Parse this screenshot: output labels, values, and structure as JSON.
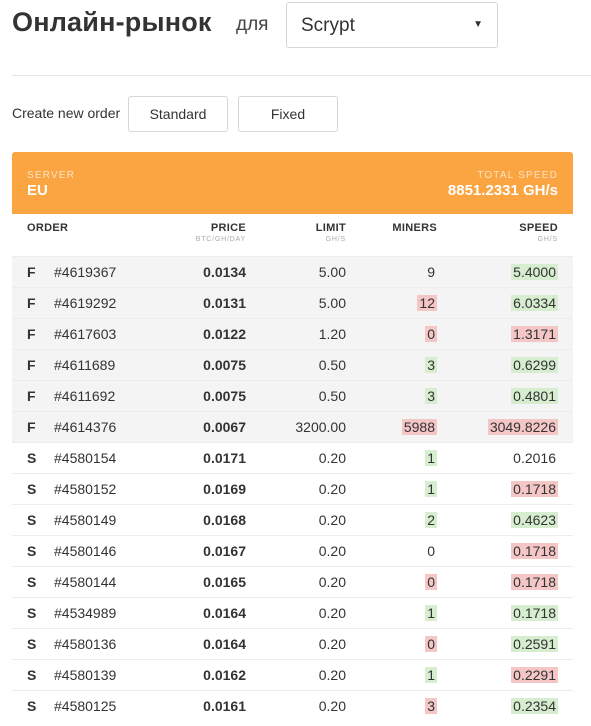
{
  "header": {
    "title": "Онлайн-рынок",
    "for_label": "для",
    "algorithm_selected": "Scrypt"
  },
  "order_bar": {
    "label": "Create new order",
    "standard_label": "Standard",
    "fixed_label": "Fixed"
  },
  "server_panel": {
    "server_label": "SERVER",
    "server_value": "EU",
    "speed_label": "TOTAL SPEED",
    "speed_value": "8851.2331 GH/s"
  },
  "table": {
    "headers": {
      "order": "ORDER",
      "price": "PRICE",
      "price_unit": "BTC/GH/DAY",
      "limit": "LIMIT",
      "limit_unit": "GH/S",
      "miners": "MINERS",
      "speed": "SPEED",
      "speed_unit": "GH/S"
    },
    "rows": [
      {
        "type": "F",
        "id": "#4619367",
        "price": "0.0134",
        "limit": "5.00",
        "miners": "9",
        "miners_hl": "",
        "speed": "5.4000",
        "speed_hl": "green"
      },
      {
        "type": "F",
        "id": "#4619292",
        "price": "0.0131",
        "limit": "5.00",
        "miners": "12",
        "miners_hl": "red",
        "speed": "6.0334",
        "speed_hl": "green"
      },
      {
        "type": "F",
        "id": "#4617603",
        "price": "0.0122",
        "limit": "1.20",
        "miners": "0",
        "miners_hl": "red",
        "speed": "1.3171",
        "speed_hl": "red"
      },
      {
        "type": "F",
        "id": "#4611689",
        "price": "0.0075",
        "limit": "0.50",
        "miners": "3",
        "miners_hl": "green",
        "speed": "0.6299",
        "speed_hl": "green"
      },
      {
        "type": "F",
        "id": "#4611692",
        "price": "0.0075",
        "limit": "0.50",
        "miners": "3",
        "miners_hl": "green",
        "speed": "0.4801",
        "speed_hl": "green"
      },
      {
        "type": "F",
        "id": "#4614376",
        "price": "0.0067",
        "limit": "3200.00",
        "miners": "5988",
        "miners_hl": "red",
        "speed": "3049.8226",
        "speed_hl": "red"
      },
      {
        "type": "S",
        "id": "#4580154",
        "price": "0.0171",
        "limit": "0.20",
        "miners": "1",
        "miners_hl": "green",
        "speed": "0.2016",
        "speed_hl": ""
      },
      {
        "type": "S",
        "id": "#4580152",
        "price": "0.0169",
        "limit": "0.20",
        "miners": "1",
        "miners_hl": "green",
        "speed": "0.1718",
        "speed_hl": "red"
      },
      {
        "type": "S",
        "id": "#4580149",
        "price": "0.0168",
        "limit": "0.20",
        "miners": "2",
        "miners_hl": "green",
        "speed": "0.4623",
        "speed_hl": "green"
      },
      {
        "type": "S",
        "id": "#4580146",
        "price": "0.0167",
        "limit": "0.20",
        "miners": "0",
        "miners_hl": "",
        "speed": "0.1718",
        "speed_hl": "red"
      },
      {
        "type": "S",
        "id": "#4580144",
        "price": "0.0165",
        "limit": "0.20",
        "miners": "0",
        "miners_hl": "red",
        "speed": "0.1718",
        "speed_hl": "red"
      },
      {
        "type": "S",
        "id": "#4534989",
        "price": "0.0164",
        "limit": "0.20",
        "miners": "1",
        "miners_hl": "green",
        "speed": "0.1718",
        "speed_hl": "green"
      },
      {
        "type": "S",
        "id": "#4580136",
        "price": "0.0164",
        "limit": "0.20",
        "miners": "0",
        "miners_hl": "red",
        "speed": "0.2591",
        "speed_hl": "green"
      },
      {
        "type": "S",
        "id": "#4580139",
        "price": "0.0162",
        "limit": "0.20",
        "miners": "1",
        "miners_hl": "green",
        "speed": "0.2291",
        "speed_hl": "red"
      },
      {
        "type": "S",
        "id": "#4580125",
        "price": "0.0161",
        "limit": "0.20",
        "miners": "3",
        "miners_hl": "red",
        "speed": "0.2354",
        "speed_hl": "green"
      }
    ]
  },
  "colors": {
    "accent_orange": "#fba442",
    "highlight_green": "#d6edd0",
    "highlight_red": "#f5c6c6"
  }
}
